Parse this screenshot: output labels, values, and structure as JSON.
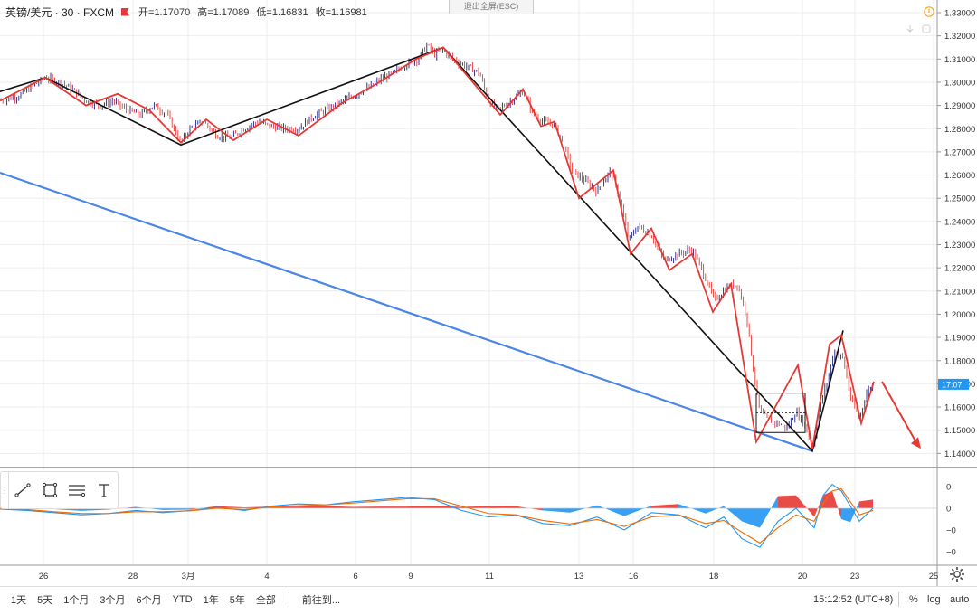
{
  "legend": {
    "symbol": "英镑/美元 · 30 · FXCM",
    "open": "开=1.17070",
    "high": "高=1.17089",
    "low": "低=1.16831",
    "close": "收=1.16981"
  },
  "exit_fullscreen": "退出全屏(ESC)",
  "price_axis": {
    "ticks": [
      "1.33000",
      "1.32000",
      "1.31000",
      "1.30000",
      "1.29000",
      "1.28000",
      "1.27000",
      "1.26000",
      "1.25000",
      "1.24000",
      "1.23000",
      "1.22000",
      "1.21000",
      "1.20000",
      "1.19000",
      "1.18000",
      "1.17000",
      "1.16000",
      "1.15000",
      "1.14000"
    ],
    "countdown": "17:07",
    "countdown_color": "#2196f3"
  },
  "indicator_axis": {
    "ticks": [
      "0",
      "0",
      "−0",
      "−0"
    ]
  },
  "time_axis": {
    "ticks": [
      "26",
      "28",
      "3月",
      "4",
      "6",
      "9",
      "11",
      "13",
      "16",
      "18",
      "20",
      "23",
      "25"
    ]
  },
  "toolbar": {
    "tools": [
      "trend-line-icon",
      "rectangle-icon",
      "fib-icon",
      "text-icon"
    ]
  },
  "bottom": {
    "ranges": [
      "1天",
      "5天",
      "1个月",
      "3个月",
      "6个月",
      "YTD",
      "1年",
      "5年",
      "全部"
    ],
    "goto": "前往到...",
    "clock": "15:12:52 (UTC+8)",
    "percent": "%",
    "log": "log",
    "auto": "auto"
  },
  "colors": {
    "up": "#1a237e",
    "down": "#e53935",
    "zigzag_red": "#e53935",
    "zigzag_black": "#111111",
    "trend_blue": "#4a86e8",
    "macd_pos": "#e53935",
    "macd_neg": "#2196f3",
    "grid": "#eeeeee"
  },
  "chart_data": [
    {
      "type": "candlestick",
      "title": "英镑/美元 · 30 · FXCM",
      "ylim": [
        1.135,
        1.335
      ],
      "x_tick_labels": [
        "26",
        "28",
        "3月",
        "4",
        "6",
        "9",
        "11",
        "13",
        "16",
        "18",
        "20",
        "23",
        "25"
      ],
      "close_path": [
        [
          0,
          1.292
        ],
        [
          20,
          1.294
        ],
        [
          35,
          1.298
        ],
        [
          50,
          1.302
        ],
        [
          65,
          1.3
        ],
        [
          80,
          1.297
        ],
        [
          95,
          1.292
        ],
        [
          110,
          1.29
        ],
        [
          125,
          1.292
        ],
        [
          140,
          1.288
        ],
        [
          155,
          1.286
        ],
        [
          170,
          1.29
        ],
        [
          185,
          1.286
        ],
        [
          200,
          1.274
        ],
        [
          210,
          1.28
        ],
        [
          225,
          1.283
        ],
        [
          240,
          1.277
        ],
        [
          255,
          1.276
        ],
        [
          270,
          1.28
        ],
        [
          285,
          1.283
        ],
        [
          300,
          1.281
        ],
        [
          315,
          1.28
        ],
        [
          330,
          1.28
        ],
        [
          345,
          1.285
        ],
        [
          360,
          1.288
        ],
        [
          375,
          1.291
        ],
        [
          390,
          1.294
        ],
        [
          405,
          1.297
        ],
        [
          420,
          1.301
        ],
        [
          435,
          1.304
        ],
        [
          450,
          1.308
        ],
        [
          462,
          1.31
        ],
        [
          472,
          1.316
        ],
        [
          480,
          1.312
        ],
        [
          490,
          1.314
        ],
        [
          500,
          1.31
        ],
        [
          515,
          1.307
        ],
        [
          530,
          1.304
        ],
        [
          540,
          1.292
        ],
        [
          550,
          1.288
        ],
        [
          565,
          1.292
        ],
        [
          578,
          1.296
        ],
        [
          590,
          1.286
        ],
        [
          600,
          1.283
        ],
        [
          612,
          1.282
        ],
        [
          622,
          1.275
        ],
        [
          632,
          1.262
        ],
        [
          645,
          1.258
        ],
        [
          660,
          1.253
        ],
        [
          675,
          1.262
        ],
        [
          685,
          1.25
        ],
        [
          695,
          1.232
        ],
        [
          705,
          1.238
        ],
        [
          720,
          1.234
        ],
        [
          735,
          1.223
        ],
        [
          750,
          1.226
        ],
        [
          765,
          1.228
        ],
        [
          775,
          1.22
        ],
        [
          790,
          1.206
        ],
        [
          805,
          1.212
        ],
        [
          815,
          1.213
        ],
        [
          825,
          1.2
        ],
        [
          832,
          1.178
        ],
        [
          840,
          1.158
        ],
        [
          850,
          1.154
        ],
        [
          860,
          1.153
        ],
        [
          870,
          1.151
        ],
        [
          880,
          1.158
        ],
        [
          890,
          1.152
        ],
        [
          898,
          1.142
        ],
        [
          905,
          1.158
        ],
        [
          915,
          1.172
        ],
        [
          922,
          1.184
        ],
        [
          932,
          1.181
        ],
        [
          940,
          1.164
        ],
        [
          950,
          1.155
        ],
        [
          958,
          1.166
        ],
        [
          965,
          1.17
        ]
      ],
      "zigzag_red": [
        [
          0,
          1.292
        ],
        [
          50,
          1.302
        ],
        [
          95,
          1.29
        ],
        [
          130,
          1.295
        ],
        [
          165,
          1.288
        ],
        [
          200,
          1.274
        ],
        [
          228,
          1.284
        ],
        [
          258,
          1.275
        ],
        [
          295,
          1.284
        ],
        [
          330,
          1.277
        ],
        [
          378,
          1.291
        ],
        [
          415,
          1.299
        ],
        [
          460,
          1.31
        ],
        [
          490,
          1.315
        ],
        [
          553,
          1.286
        ],
        [
          578,
          1.297
        ],
        [
          598,
          1.281
        ],
        [
          613,
          1.283
        ],
        [
          640,
          1.25
        ],
        [
          678,
          1.262
        ],
        [
          697,
          1.226
        ],
        [
          720,
          1.237
        ],
        [
          740,
          1.219
        ],
        [
          765,
          1.226
        ],
        [
          788,
          1.201
        ],
        [
          808,
          1.213
        ],
        [
          836,
          1.145
        ],
        [
          882,
          1.178
        ],
        [
          898,
          1.142
        ],
        [
          917,
          1.187
        ],
        [
          930,
          1.191
        ],
        [
          952,
          1.153
        ],
        [
          966,
          1.171
        ]
      ],
      "zigzag_black": [
        [
          0,
          1.296
        ],
        [
          50,
          1.302
        ],
        [
          200,
          1.273
        ],
        [
          490,
          1.315
        ],
        [
          898,
          1.141
        ],
        [
          932,
          1.193
        ]
      ],
      "trend_blue": [
        [
          0,
          1.261
        ],
        [
          898,
          1.141
        ]
      ],
      "box": {
        "x_range": [
          836,
          890
        ],
        "y_range": [
          1.149,
          1.166
        ]
      },
      "forecast_arrow": {
        "from": [
          975,
          1.171
        ],
        "to": [
          1018,
          1.142
        ]
      }
    },
    {
      "type": "area",
      "title": "MACD",
      "ylim": [
        -1.0,
        1.0
      ],
      "x": [
        0,
        30,
        60,
        90,
        120,
        150,
        180,
        210,
        240,
        270,
        300,
        330,
        360,
        390,
        420,
        450,
        480,
        510,
        540,
        570,
        600,
        630,
        660,
        690,
        720,
        750,
        780,
        800,
        820,
        840,
        860,
        880,
        900,
        910,
        920,
        930,
        940,
        950,
        965
      ],
      "histogram": [
        0.02,
        0.02,
        -0.02,
        -0.06,
        -0.03,
        0.03,
        -0.04,
        -0.03,
        0.05,
        0.02,
        0.04,
        0.04,
        0.05,
        0.03,
        0.04,
        0.04,
        0.06,
        0.03,
        0.05,
        0.05,
        -0.05,
        -0.1,
        0.07,
        -0.18,
        0.06,
        0.1,
        -0.12,
        0.05,
        -0.3,
        -0.45,
        0.28,
        0.3,
        -0.2,
        0.3,
        0.4,
        -0.25,
        -0.32,
        0.16,
        0.2
      ],
      "macd": [
        -0.02,
        -0.05,
        -0.1,
        -0.15,
        -0.12,
        -0.05,
        -0.1,
        -0.05,
        0.02,
        -0.05,
        0.05,
        0.1,
        0.08,
        0.15,
        0.2,
        0.25,
        0.2,
        -0.05,
        -0.2,
        -0.15,
        -0.35,
        -0.4,
        -0.2,
        -0.5,
        -0.1,
        -0.15,
        -0.45,
        -0.2,
        -0.7,
        -0.9,
        -0.3,
        0.0,
        -0.45,
        0.3,
        0.55,
        0.4,
        0.05,
        -0.3,
        0.0
      ],
      "signal": [
        -0.02,
        -0.03,
        -0.08,
        -0.12,
        -0.12,
        -0.08,
        -0.08,
        -0.06,
        0.0,
        -0.03,
        0.03,
        0.06,
        0.08,
        0.12,
        0.17,
        0.22,
        0.22,
        0.05,
        -0.12,
        -0.15,
        -0.28,
        -0.36,
        -0.26,
        -0.42,
        -0.2,
        -0.15,
        -0.35,
        -0.28,
        -0.55,
        -0.8,
        -0.45,
        -0.15,
        -0.3,
        0.1,
        0.4,
        0.45,
        0.15,
        -0.15,
        -0.05
      ]
    }
  ]
}
